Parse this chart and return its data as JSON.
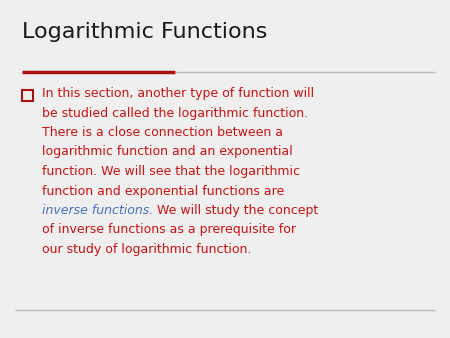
{
  "title": "Logarithmic Functions",
  "title_color": "#1a1a1a",
  "title_fontsize": 16,
  "background_color": "#efefef",
  "divider_color_left": "#aa1111",
  "divider_color_right": "#bbbbbb",
  "bullet_color": "#aa1111",
  "text_color": "#cc1111",
  "italic_color": "#4472c4",
  "bottom_line_color": "#bbbbbb",
  "font_size_body": 9.0,
  "body_text_normal_1": "In this section, another type of function will be studied called the logarithmic function. There is a close connection between a logarithmic function and an exponential function. We will see that the logarithmic function and exponential functions are ",
  "body_text_italic": "inverse functions.",
  "body_text_normal_2": " We will study the concept of inverse functions as a prerequisite for our study of logarithmic function."
}
